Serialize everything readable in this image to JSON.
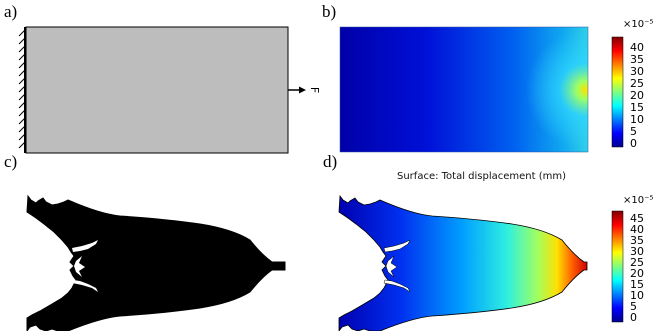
{
  "labels": {
    "a": "a)",
    "b": "b)",
    "c": "c)",
    "d": "d)"
  },
  "force_label": "F",
  "surface_title": "Surface: Total displacement (mm)",
  "colorbar_b": {
    "exponent": "×10⁻⁵",
    "ticks": [
      "40",
      "35",
      "30",
      "25",
      "20",
      "15",
      "10",
      "5",
      "0"
    ]
  },
  "colorbar_d": {
    "exponent": "×10⁻⁵",
    "ticks": [
      "45",
      "40",
      "35",
      "30",
      "25",
      "20",
      "15",
      "10",
      "5",
      "0"
    ]
  },
  "colors": {
    "plate": "#bdbdbd",
    "topology": "#000000",
    "jet_low": "#00008f",
    "jet_high": "#800000"
  }
}
